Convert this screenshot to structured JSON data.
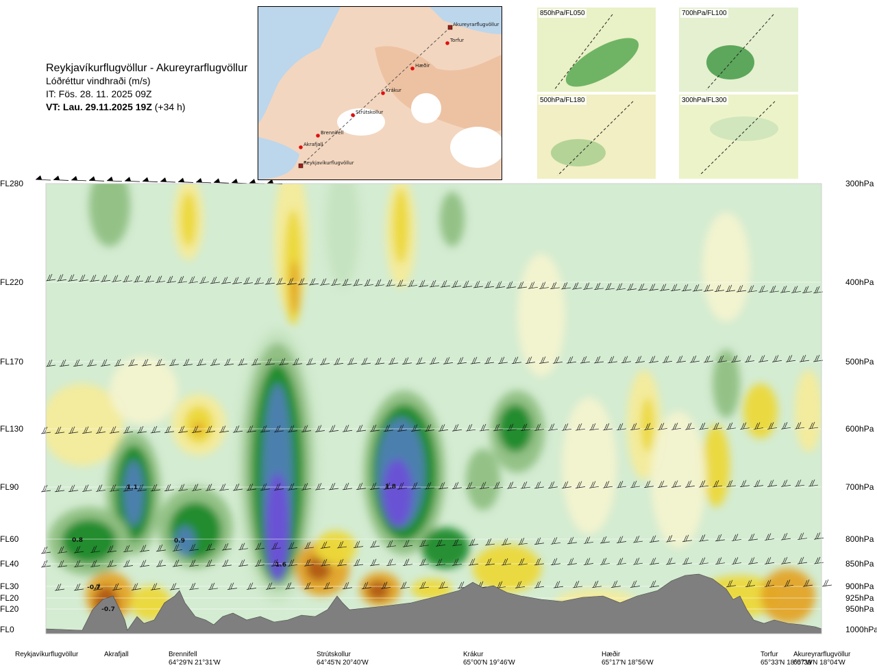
{
  "header": {
    "route_title": "Reykjavíkurflugvöllur - Akureyrarflugvöllur",
    "variable": "Lóðréttur vindhraði (m/s)",
    "issue_time": "IT: Fös. 28. 11. 2025 09Z",
    "valid_time": "VT: Lau. 29.11.2025 19Z",
    "lead_time": "(+34 h)"
  },
  "route_map": {
    "points": [
      {
        "name": "Akureyrarflugvöllur"
      },
      {
        "name": "Torfur"
      },
      {
        "name": "Hæðir"
      },
      {
        "name": "Krákur"
      },
      {
        "name": "Strútskollur"
      },
      {
        "name": "Brennifell"
      },
      {
        "name": "Akrafjall"
      },
      {
        "name": "Reykjavíkurflugvöllur"
      }
    ]
  },
  "mini_maps": [
    {
      "label": "850hPa/FL050"
    },
    {
      "label": "700hPa/FL100"
    },
    {
      "label": "500hPa/FL180"
    },
    {
      "label": "300hPa/FL300"
    }
  ],
  "chart_data": {
    "type": "heatmap",
    "title": "Reykjavíkurflugvöllur - Akureyrarflugvöllur",
    "variable": "Lóðréttur vindhraði (m/s)",
    "x_axis": "distance along route",
    "levels": [
      {
        "fl": "FL280",
        "hpa": "300hPa"
      },
      {
        "fl": "FL220",
        "hpa": "400hPa"
      },
      {
        "fl": "FL170",
        "hpa": "500hPa"
      },
      {
        "fl": "FL130",
        "hpa": "600hPa"
      },
      {
        "fl": "FL90",
        "hpa": "700hPa"
      },
      {
        "fl": "FL60",
        "hpa": "800hPa"
      },
      {
        "fl": "FL40",
        "hpa": "850hPa"
      },
      {
        "fl": "FL30",
        "hpa": "900hPa"
      },
      {
        "fl": "FL20",
        "hpa": "925hPa"
      },
      {
        "fl": "FL20",
        "hpa": "950hPa"
      },
      {
        "fl": "FL0",
        "hpa": "1000hPa"
      }
    ],
    "locations": [
      {
        "name": "Reykjavíkurflugvöllur",
        "coord": ""
      },
      {
        "name": "Akrafjall",
        "coord": ""
      },
      {
        "name": "Brennifell",
        "coord": "64°29'N 21°31'W"
      },
      {
        "name": "Strútskollur",
        "coord": "64°45'N 20°40'W"
      },
      {
        "name": "Krákur",
        "coord": "65°00'N 19°46'W"
      },
      {
        "name": "Hæðir",
        "coord": "65°17'N 18°56'W"
      },
      {
        "name": "Torfur",
        "coord": "65°33'N 18°07'W"
      },
      {
        "name": "Akureyrarflugvöllur",
        "coord": "65°39'N 18°04'W"
      }
    ],
    "annotations": [
      {
        "value": "1.1"
      },
      {
        "value": "1.8"
      },
      {
        "value": "0.8"
      },
      {
        "value": "0.9"
      },
      {
        "value": "1.6"
      },
      {
        "value": "-0.7"
      },
      {
        "value": "-0.7"
      }
    ],
    "colors": {
      "strong_up": "#6a4fd6",
      "up_blue": "#4f7fb5",
      "up_dark_green": "#1f8a2a",
      "up_green": "#55a84a",
      "up_med_green": "#8fbf82",
      "up_light_green": "#c5e3c0",
      "background": "#d4ecd2",
      "pale": "#f3f3cf",
      "down_light_yellow": "#f4eb9a",
      "down_yellow": "#ecd83a",
      "down_orange": "#e3a426",
      "down_brown": "#b05a16",
      "terrain": "#7f7f7f"
    }
  }
}
